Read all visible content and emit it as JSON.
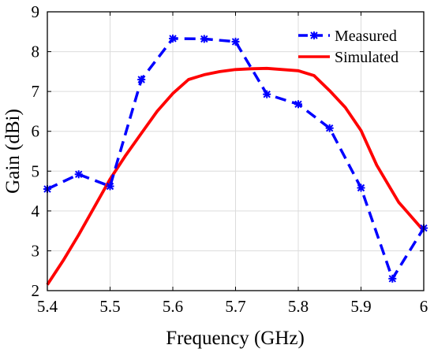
{
  "chart_data": {
    "type": "line",
    "title": "",
    "xlabel": "Frequency (GHz)",
    "ylabel": "Gain (dBi)",
    "xlim": [
      5.4,
      6.0
    ],
    "ylim": [
      2,
      9
    ],
    "xticks": [
      "5.4",
      "5.5",
      "5.6",
      "5.7",
      "5.8",
      "5.9",
      "6"
    ],
    "xtick_values": [
      5.4,
      5.5,
      5.6,
      5.7,
      5.8,
      5.9,
      6.0
    ],
    "yticks": [
      "2",
      "3",
      "4",
      "5",
      "6",
      "7",
      "8",
      "9"
    ],
    "ytick_values": [
      2,
      3,
      4,
      5,
      6,
      7,
      8,
      9
    ],
    "grid": true,
    "legend_position": "top-right",
    "series": [
      {
        "name": "Measured",
        "color": "#0000ff",
        "style": "dashed",
        "marker": "asterisk",
        "x": [
          5.4,
          5.45,
          5.5,
          5.55,
          5.6,
          5.65,
          5.7,
          5.75,
          5.8,
          5.85,
          5.9,
          5.95,
          6.0
        ],
        "y": [
          4.55,
          4.92,
          4.62,
          7.3,
          8.33,
          8.32,
          8.25,
          6.93,
          6.68,
          6.08,
          4.58,
          2.3,
          3.57
        ]
      },
      {
        "name": "Simulated",
        "color": "#ff0000",
        "style": "solid",
        "marker": "none",
        "x": [
          5.4,
          5.425,
          5.45,
          5.475,
          5.5,
          5.525,
          5.55,
          5.575,
          5.6,
          5.625,
          5.65,
          5.675,
          5.7,
          5.725,
          5.75,
          5.775,
          5.8,
          5.825,
          5.85,
          5.875,
          5.9,
          5.925,
          5.96,
          6.0
        ],
        "y": [
          2.15,
          2.75,
          3.4,
          4.1,
          4.8,
          5.4,
          5.95,
          6.5,
          6.95,
          7.3,
          7.42,
          7.5,
          7.55,
          7.57,
          7.58,
          7.55,
          7.52,
          7.4,
          7.02,
          6.6,
          6.02,
          5.15,
          4.22,
          3.5
        ]
      }
    ]
  }
}
